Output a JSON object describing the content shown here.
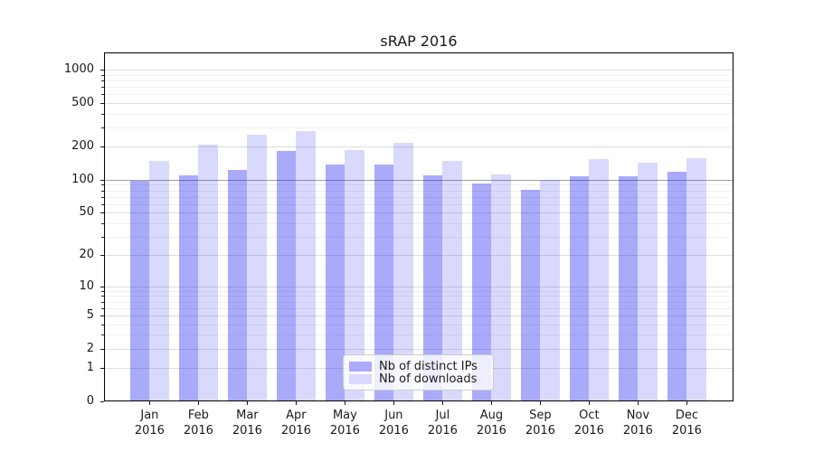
{
  "chart_data": {
    "type": "bar",
    "title": "sRAP 2016",
    "xlabel": "",
    "ylabel": "",
    "yscale": "log1p",
    "ylim": [
      0,
      1430
    ],
    "grid": true,
    "legend_position": "lower center inside",
    "categories": [
      "Jan 2016",
      "Feb 2016",
      "Mar 2016",
      "Apr 2016",
      "May 2016",
      "Jun 2016",
      "Jul 2016",
      "Aug 2016",
      "Sep 2016",
      "Oct 2016",
      "Nov 2016",
      "Dec 2016"
    ],
    "series": [
      {
        "name": "Nb of distinct IPs",
        "color": "rgba(20,20,240,0.36)",
        "legend_color": "#aaaafa",
        "values": [
          97,
          110,
          123,
          182,
          137,
          138,
          109,
          92,
          81,
          108,
          107,
          118
        ]
      },
      {
        "name": "Nb of downloads",
        "color": "rgba(20,20,240,0.16)",
        "legend_color": "#d9d9fd",
        "values": [
          149,
          209,
          258,
          280,
          185,
          216,
          150,
          112,
          100,
          154,
          142,
          158
        ]
      }
    ],
    "yticks": [
      0,
      1,
      2,
      5,
      10,
      20,
      50,
      100,
      200,
      500,
      1000
    ],
    "yticks_minor": [
      3,
      4,
      6,
      7,
      8,
      9,
      30,
      40,
      60,
      70,
      80,
      90,
      300,
      400,
      600,
      700,
      800,
      900
    ],
    "emphasized_gridline": 100
  },
  "colors": {
    "grid_major": "#dedede",
    "grid_minor": "#efefef",
    "grid_emphasis": "#a0a0a0",
    "spine": "#000000",
    "text": "#1a1a1a",
    "background": "#ffffff"
  }
}
